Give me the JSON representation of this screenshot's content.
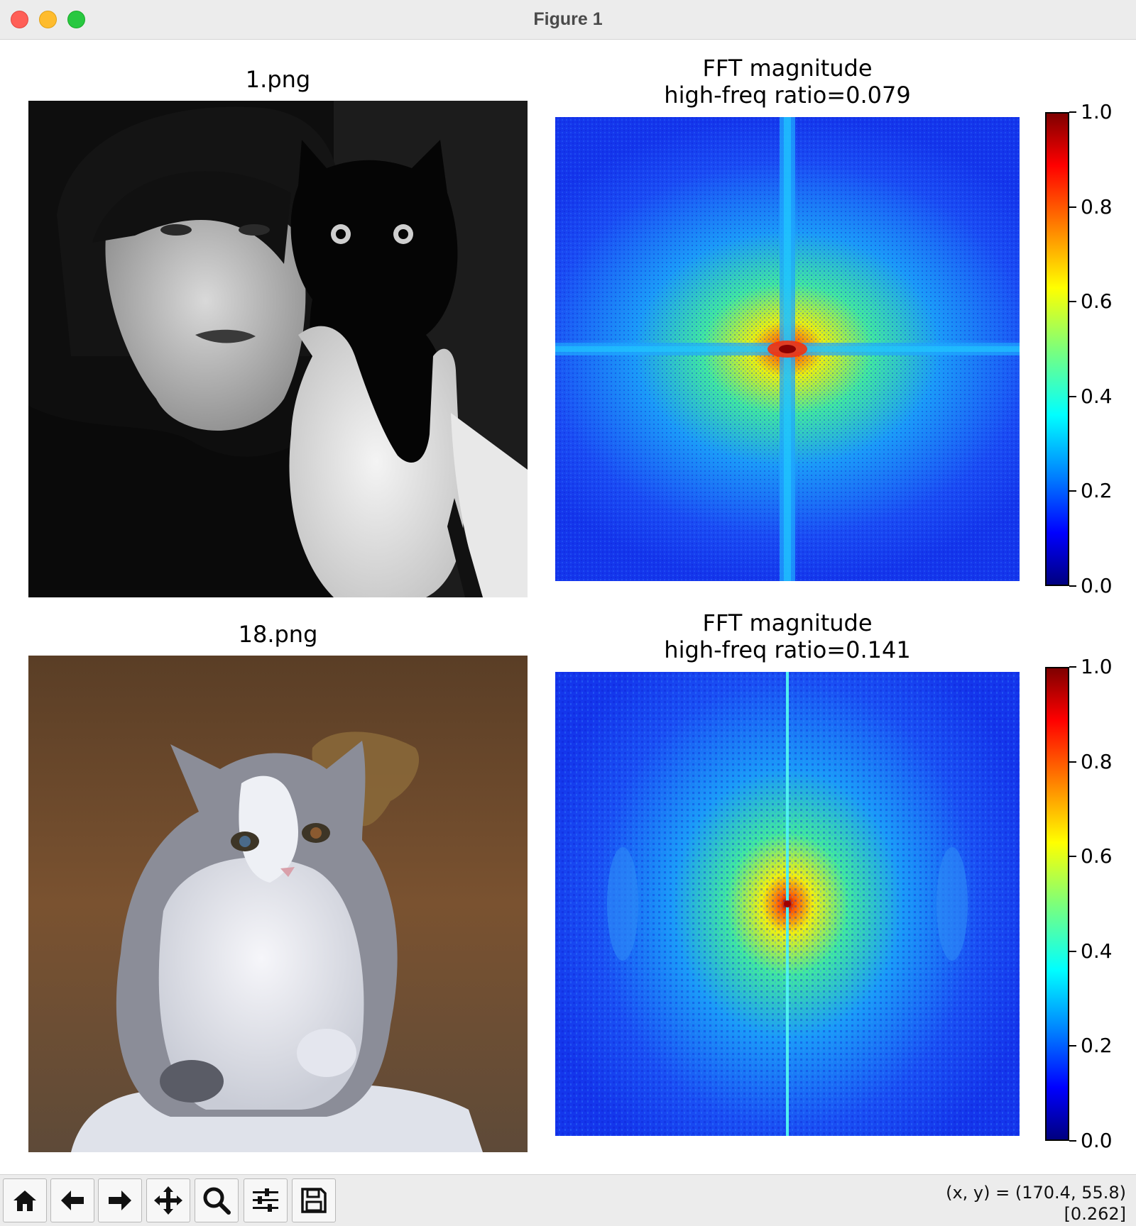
{
  "window": {
    "title": "Figure 1"
  },
  "panels": [
    {
      "image_title": "1.png",
      "fft_title_line1": "FFT magnitude",
      "fft_title_line2": "high-freq ratio=0.079"
    },
    {
      "image_title": "18.png",
      "fft_title_line1": "FFT magnitude",
      "fft_title_line2": "high-freq ratio=0.141"
    }
  ],
  "colorbar": {
    "colormap": "jet",
    "ticks": [
      "0.0",
      "0.2",
      "0.4",
      "0.6",
      "0.8",
      "1.0"
    ]
  },
  "toolbar": {
    "buttons": [
      "home-icon",
      "back-arrow-icon",
      "forward-arrow-icon",
      "pan-move-icon",
      "zoom-magnifier-icon",
      "configure-subplots-icon",
      "save-floppy-icon"
    ],
    "coords_line1": "(x, y) = (170.4, 55.8)",
    "coords_line2": "[0.262]"
  },
  "colors": {
    "fft_background": "#1a3cf0",
    "photo1_tone": "grayscale",
    "photo2_background": "#6b4a2a"
  }
}
